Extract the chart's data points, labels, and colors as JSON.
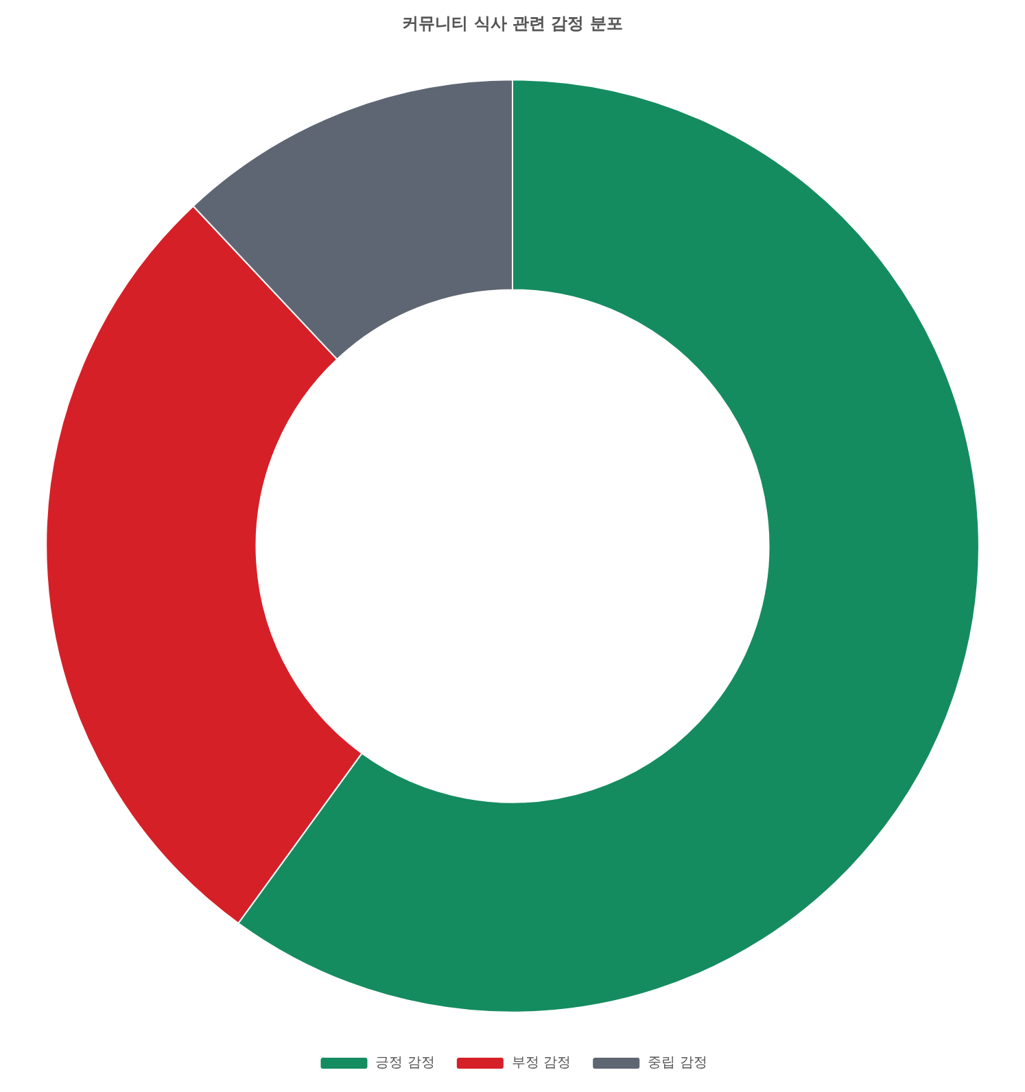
{
  "chart_data": {
    "type": "donut",
    "title": "커뮤니티 식사 관련 감정 분포",
    "categories": [
      "긍정 감정",
      "부정 감정",
      "중립 감정"
    ],
    "values": [
      60,
      28,
      12
    ],
    "colors": [
      "#158c60",
      "#d62028",
      "#5f6673"
    ],
    "legend": "bottom"
  }
}
